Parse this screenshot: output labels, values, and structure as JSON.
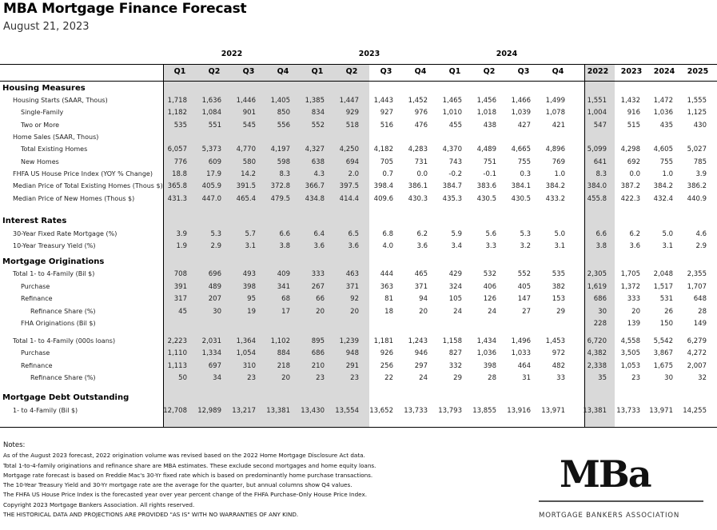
{
  "title": "MBA Mortgage Finance Forecast",
  "date": "August 21, 2023",
  "years": [
    "2022",
    "2023",
    "2024"
  ],
  "column_headers": [
    "Q1",
    "Q2",
    "Q3",
    "Q4",
    "Q1",
    "Q2",
    "Q3",
    "Q4",
    "Q1",
    "Q2",
    "Q3",
    "Q4",
    "2022",
    "2023",
    "2024",
    "2025"
  ],
  "rows": [
    {
      "label": "Housing Measures",
      "section": true,
      "values": []
    },
    {
      "label": "Housing Starts (SAAR, Thous)",
      "indent": 1,
      "values": [
        "1,718",
        "1,636",
        "1,446",
        "1,405",
        "1,385",
        "1,447",
        "1,443",
        "1,452",
        "1,465",
        "1,456",
        "1,466",
        "1,499",
        "1,551",
        "1,432",
        "1,472",
        "1,555"
      ]
    },
    {
      "label": "Single-Family",
      "indent": 2,
      "values": [
        "1,182",
        "1,084",
        "901",
        "850",
        "834",
        "929",
        "927",
        "976",
        "1,010",
        "1,018",
        "1,039",
        "1,078",
        "1,004",
        "916",
        "1,036",
        "1,125"
      ]
    },
    {
      "label": "Two or More",
      "indent": 2,
      "values": [
        "535",
        "551",
        "545",
        "556",
        "552",
        "518",
        "516",
        "476",
        "455",
        "438",
        "427",
        "421",
        "547",
        "515",
        "435",
        "430"
      ]
    },
    {
      "label": "Home Sales (SAAR, Thous)",
      "indent": 1,
      "values": []
    },
    {
      "label": "Total Existing Homes",
      "indent": 2,
      "values": [
        "6,057",
        "5,373",
        "4,770",
        "4,197",
        "4,327",
        "4,250",
        "4,182",
        "4,283",
        "4,370",
        "4,489",
        "4,665",
        "4,896",
        "5,099",
        "4,298",
        "4,605",
        "5,027"
      ]
    },
    {
      "label": "New Homes",
      "indent": 2,
      "values": [
        "776",
        "609",
        "580",
        "598",
        "638",
        "694",
        "705",
        "731",
        "743",
        "751",
        "755",
        "769",
        "641",
        "692",
        "755",
        "785"
      ]
    },
    {
      "label": "FHFA US House Price Index (YOY % Change)",
      "indent": 1,
      "values": [
        "18.8",
        "17.9",
        "14.2",
        "8.3",
        "4.3",
        "2.0",
        "0.7",
        "0.0",
        "-0.2",
        "-0.1",
        "0.3",
        "1.0",
        "8.3",
        "0.0",
        "1.0",
        "3.9"
      ]
    },
    {
      "label": "Median Price of Total Existing Homes (Thous $)",
      "indent": 1,
      "values": [
        "365.8",
        "405.9",
        "391.5",
        "372.8",
        "366.7",
        "397.5",
        "398.4",
        "386.1",
        "384.7",
        "383.6",
        "384.1",
        "384.2",
        "384.0",
        "387.2",
        "384.2",
        "386.2"
      ]
    },
    {
      "label": "Median Price of New Homes (Thous $)",
      "indent": 1,
      "values": [
        "431.3",
        "447.0",
        "465.4",
        "479.5",
        "434.8",
        "414.4",
        "409.6",
        "430.3",
        "435.3",
        "430.5",
        "430.5",
        "433.2",
        "455.8",
        "422.3",
        "432.4",
        "440.9"
      ]
    },
    {
      "label": "Interest Rates",
      "section": true,
      "values": []
    },
    {
      "label": "30-Year Fixed Rate Mortgage (%)",
      "indent": 1,
      "values": [
        "3.9",
        "5.3",
        "5.7",
        "6.6",
        "6.4",
        "6.5",
        "6.8",
        "6.2",
        "5.9",
        "5.6",
        "5.3",
        "5.0",
        "6.6",
        "6.2",
        "5.0",
        "4.6"
      ]
    },
    {
      "label": "10-Year Treasury Yield (%)",
      "indent": 1,
      "values": [
        "1.9",
        "2.9",
        "3.1",
        "3.8",
        "3.6",
        "3.6",
        "4.0",
        "3.6",
        "3.4",
        "3.3",
        "3.2",
        "3.1",
        "3.8",
        "3.6",
        "3.1",
        "2.9"
      ]
    },
    {
      "label": "Mortgage Originations",
      "section": true,
      "values": []
    },
    {
      "label": "Total 1- to 4-Family (Bil $)",
      "indent": 1,
      "values": [
        "708",
        "696",
        "493",
        "409",
        "333",
        "463",
        "444",
        "465",
        "429",
        "532",
        "552",
        "535",
        "2,305",
        "1,705",
        "2,048",
        "2,355"
      ]
    },
    {
      "label": "Purchase",
      "indent": 2,
      "values": [
        "391",
        "489",
        "398",
        "341",
        "267",
        "371",
        "363",
        "371",
        "324",
        "406",
        "405",
        "382",
        "1,619",
        "1,372",
        "1,517",
        "1,707"
      ]
    },
    {
      "label": "Refinance",
      "indent": 2,
      "values": [
        "317",
        "207",
        "95",
        "68",
        "66",
        "92",
        "81",
        "94",
        "105",
        "126",
        "147",
        "153",
        "686",
        "333",
        "531",
        "648"
      ]
    },
    {
      "label": "Refinance Share (%)",
      "indent": 3,
      "values": [
        "45",
        "30",
        "19",
        "17",
        "20",
        "20",
        "18",
        "20",
        "24",
        "24",
        "27",
        "29",
        "30",
        "20",
        "26",
        "28"
      ]
    },
    {
      "label": "FHA Originations (Bil $)",
      "indent": 2,
      "values": [
        "",
        "",
        "",
        "",
        "",
        "",
        "",
        "",
        "",
        "",
        "",
        "",
        "228",
        "139",
        "150",
        "149"
      ]
    },
    {
      "label": "",
      "spacer": true,
      "values": []
    },
    {
      "label": "Total 1- to 4-Family (000s loans)",
      "indent": 1,
      "values": [
        "2,223",
        "2,031",
        "1,364",
        "1,102",
        "895",
        "1,239",
        "1,181",
        "1,243",
        "1,158",
        "1,434",
        "1,496",
        "1,453",
        "6,720",
        "4,558",
        "5,542",
        "6,279"
      ]
    },
    {
      "label": "Purchase",
      "indent": 2,
      "values": [
        "1,110",
        "1,334",
        "1,054",
        "884",
        "686",
        "948",
        "926",
        "946",
        "827",
        "1,036",
        "1,033",
        "972",
        "4,382",
        "3,505",
        "3,867",
        "4,272"
      ]
    },
    {
      "label": "Refinance",
      "indent": 2,
      "values": [
        "1,113",
        "697",
        "310",
        "218",
        "210",
        "291",
        "256",
        "297",
        "332",
        "398",
        "464",
        "482",
        "2,338",
        "1,053",
        "1,675",
        "2,007"
      ]
    },
    {
      "label": "Refinance Share (%)",
      "indent": 3,
      "values": [
        "50",
        "34",
        "23",
        "20",
        "23",
        "23",
        "22",
        "24",
        "29",
        "28",
        "31",
        "33",
        "35",
        "23",
        "30",
        "32"
      ]
    },
    {
      "label": "Mortgage Debt Outstanding",
      "section": true,
      "values": []
    },
    {
      "label": "1- to 4-Family (Bil $)",
      "indent": 1,
      "values": [
        "12,708",
        "12,989",
        "13,217",
        "13,381",
        "13,430",
        "13,554",
        "13,652",
        "13,733",
        "13,793",
        "13,855",
        "13,916",
        "13,971",
        "13,381",
        "13,733",
        "13,971",
        "14,255"
      ]
    }
  ],
  "notes": [
    "Notes:",
    "As of the August 2023 forecast, 2022 origination volume was revised based on the 2022 Home Mortgage Disclosure Act data.",
    "Total 1-to-4-family originations and refinance share are MBA estimates. These exclude second mortgages and home equity loans.",
    "Mortgage rate forecast is based on Freddie Mac's 30-Yr fixed rate which is based on predominantly home purchase transactions.",
    "The 10-Year Treasury Yield and 30-Yr mortgage rate are the average for the quarter, but annual columns show Q4 values.",
    "The FHFA US House Price Index is the forecasted year over year percent change of the FHFA Purchase-Only House Price Index.",
    "Copyright 2023 Mortgage Bankers Association. All rights reserved.",
    "THE HISTORICAL DATA AND PROJECTIONS ARE PROVIDED \"AS IS\" WITH NO WARRANTIES OF ANY KIND."
  ],
  "logo": {
    "mark": "MBa",
    "tagline": "MORTGAGE BANKERS ASSOCIATION"
  }
}
